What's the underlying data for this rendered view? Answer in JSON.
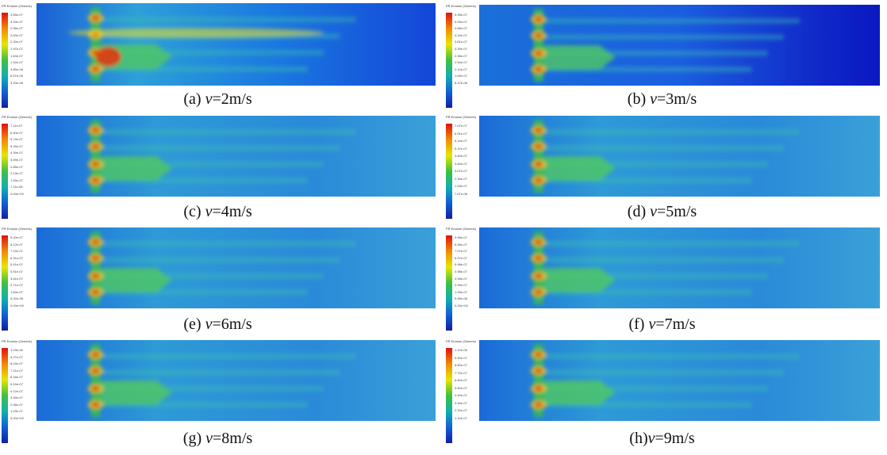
{
  "legend_title": "PR Erosion (Generic)",
  "panels": [
    {
      "id": "a",
      "prefix": "(a) ",
      "var": "v",
      "eq": "=2m/s",
      "legend": [
        "3.55e-07",
        "3.29e-07",
        "2.96e-07",
        "2.63e-07",
        "2.30e-07",
        "1.97e-07",
        "1.64e-07",
        "1.32e-07",
        "9.85e-08",
        "6.57e-08",
        "3.29e-08"
      ]
    },
    {
      "id": "b",
      "prefix": "(b) ",
      "var": "v",
      "eq": "=3m/s",
      "legend": [
        "5.95e-07",
        "5.09e-07",
        "4.66e-07",
        "4.24e-07",
        "3.81e-07",
        "3.39e-07",
        "2.96e-07",
        "2.54e-07",
        "2.12e-07",
        "1.69e-07",
        "8.47e-08"
      ]
    },
    {
      "id": "c",
      "prefix": "(c) ",
      "var": "v",
      "eq": "=4m/s",
      "legend": [
        "7.11e-07",
        "6.40e-07",
        "5.74e-07",
        "5.05e-07",
        "4.39e-07",
        "3.59e-07",
        "2.85e-07",
        "2.13e-07",
        "1.45e-07",
        "7.11e-08",
        "0.00e+00"
      ]
    },
    {
      "id": "d",
      "prefix": "(d) ",
      "var": "v",
      "eq": "=5m/s",
      "legend": [
        "7.67e-07",
        "6.91e-07",
        "6.14e-07",
        "5.37e-07",
        "4.60e-07",
        "3.84e-07",
        "3.07e-07",
        "2.30e-07",
        "1.53e-07",
        "7.67e-08"
      ]
    },
    {
      "id": "e",
      "prefix": "(e) ",
      "var": "v",
      "eq": "=6m/s",
      "legend": [
        "9.02e-07",
        "8.12e-07",
        "7.22e-07",
        "6.31e-07",
        "5.41e-07",
        "4.51e-07",
        "3.61e-07",
        "2.71e-07",
        "1.80e-07",
        "9.02e-08",
        "0.00e+00"
      ]
    },
    {
      "id": "f",
      "prefix": "(f) ",
      "var": "v",
      "eq": "=7m/s",
      "legend": [
        "9.96e-07",
        "8.96e-07",
        "7.97e-07",
        "6.97e-07",
        "5.98e-07",
        "4.98e-07",
        "3.98e-07",
        "2.99e-07",
        "1.99e-07",
        "9.96e-08",
        "0.00e+00"
      ]
    },
    {
      "id": "g",
      "prefix": "(g) ",
      "var": "v",
      "eq": "=8m/s",
      "legend": [
        "1.03e-06",
        "9.27e-07",
        "8.24e-07",
        "7.21e-07",
        "6.18e-07",
        "5.15e-07",
        "4.12e-07",
        "3.09e-07",
        "2.06e-07",
        "1.03e-07",
        "0.00e+00"
      ]
    },
    {
      "id": "h",
      "prefix": "(h)",
      "var": "v",
      "eq": "=9m/s",
      "legend": [
        "1.10e-06",
        "9.90e-07",
        "8.80e-07",
        "7.70e-07",
        "6.60e-07",
        "5.50e-07",
        "4.40e-07",
        "3.30e-07",
        "2.20e-07",
        "1.10e-07"
      ]
    }
  ]
}
